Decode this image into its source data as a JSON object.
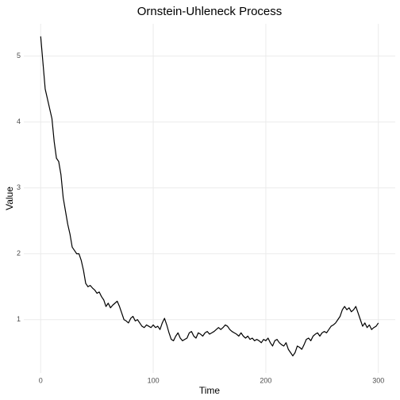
{
  "chart_data": {
    "type": "line",
    "title": "Ornstein-Uhleneck Process",
    "x_label": "Time",
    "y_label": "Value",
    "x": [
      0,
      2,
      4,
      6,
      8,
      10,
      12,
      14,
      16,
      18,
      20,
      22,
      24,
      26,
      28,
      30,
      32,
      34,
      36,
      38,
      40,
      42,
      44,
      46,
      48,
      50,
      52,
      54,
      56,
      58,
      60,
      62,
      64,
      66,
      68,
      70,
      72,
      74,
      76,
      78,
      80,
      82,
      84,
      86,
      88,
      90,
      92,
      94,
      96,
      98,
      100,
      102,
      104,
      106,
      108,
      110,
      112,
      114,
      116,
      118,
      120,
      122,
      124,
      126,
      128,
      130,
      132,
      134,
      136,
      138,
      140,
      142,
      144,
      146,
      148,
      150,
      152,
      154,
      156,
      158,
      160,
      162,
      164,
      166,
      168,
      170,
      172,
      174,
      176,
      178,
      180,
      182,
      184,
      186,
      188,
      190,
      192,
      194,
      196,
      198,
      200,
      202,
      204,
      206,
      208,
      210,
      212,
      214,
      216,
      218,
      220,
      222,
      224,
      226,
      228,
      230,
      232,
      234,
      236,
      238,
      240,
      242,
      244,
      246,
      248,
      250,
      252,
      254,
      256,
      258,
      260,
      262,
      264,
      266,
      268,
      270,
      272,
      274,
      276,
      278,
      280,
      282,
      284,
      286,
      288,
      290,
      292,
      294,
      296,
      298,
      300
    ],
    "series": [
      {
        "name": "Value",
        "color": "#000000",
        "values": [
          5.3,
          4.9,
          4.5,
          4.35,
          4.2,
          4.05,
          3.7,
          3.45,
          3.4,
          3.2,
          2.85,
          2.65,
          2.45,
          2.3,
          2.1,
          2.05,
          2.0,
          2.0,
          1.9,
          1.75,
          1.55,
          1.5,
          1.52,
          1.48,
          1.45,
          1.4,
          1.42,
          1.35,
          1.3,
          1.2,
          1.25,
          1.18,
          1.22,
          1.25,
          1.28,
          1.2,
          1.1,
          1.0,
          0.98,
          0.95,
          1.02,
          1.05,
          0.98,
          1.0,
          0.95,
          0.9,
          0.88,
          0.92,
          0.9,
          0.88,
          0.92,
          0.88,
          0.9,
          0.85,
          0.95,
          1.02,
          0.92,
          0.8,
          0.7,
          0.68,
          0.75,
          0.8,
          0.72,
          0.68,
          0.7,
          0.72,
          0.8,
          0.82,
          0.75,
          0.72,
          0.8,
          0.78,
          0.75,
          0.8,
          0.82,
          0.78,
          0.8,
          0.82,
          0.85,
          0.88,
          0.85,
          0.88,
          0.92,
          0.9,
          0.85,
          0.82,
          0.8,
          0.78,
          0.75,
          0.8,
          0.75,
          0.72,
          0.75,
          0.7,
          0.72,
          0.68,
          0.7,
          0.68,
          0.65,
          0.7,
          0.68,
          0.72,
          0.65,
          0.6,
          0.68,
          0.7,
          0.65,
          0.62,
          0.6,
          0.65,
          0.55,
          0.5,
          0.45,
          0.5,
          0.6,
          0.58,
          0.55,
          0.62,
          0.7,
          0.72,
          0.68,
          0.75,
          0.78,
          0.8,
          0.75,
          0.8,
          0.82,
          0.8,
          0.85,
          0.9,
          0.92,
          0.95,
          1.0,
          1.05,
          1.15,
          1.2,
          1.15,
          1.18,
          1.12,
          1.15,
          1.2,
          1.1,
          1.0,
          0.9,
          0.95,
          0.88,
          0.92,
          0.85,
          0.88,
          0.9,
          0.95
        ]
      }
    ],
    "xlim": [
      -15,
      315
    ],
    "ylim": [
      0.19,
      5.49
    ],
    "xticks": [
      0,
      100,
      200,
      300
    ],
    "yticks": [
      1,
      2,
      3,
      4,
      5
    ],
    "grid": true
  }
}
